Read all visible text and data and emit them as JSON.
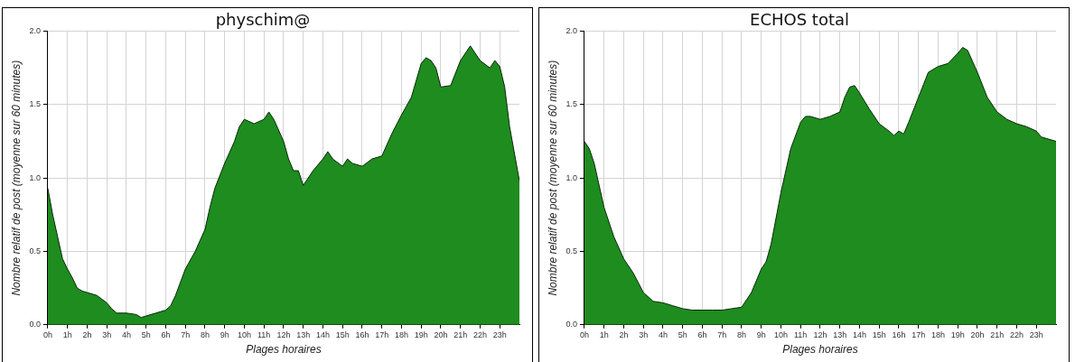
{
  "chart_data": [
    {
      "type": "area",
      "title": "physchim@",
      "xlabel": "Plages horaires",
      "ylabel": "Nombre relatif de post (moyenne sur 60 minutes)",
      "x": [
        0,
        0.25,
        0.5,
        0.75,
        1,
        1.25,
        1.5,
        1.75,
        2,
        2.5,
        3,
        3.25,
        3.5,
        4,
        4.5,
        4.75,
        5,
        5.5,
        6,
        6.25,
        6.5,
        7,
        7.5,
        8,
        8.25,
        8.5,
        9,
        9.5,
        9.75,
        10,
        10.5,
        11,
        11.25,
        11.5,
        12,
        12.25,
        12.5,
        12.75,
        13,
        13.25,
        13.5,
        14,
        14.25,
        14.5,
        15,
        15.25,
        15.5,
        16,
        16.5,
        17,
        17.5,
        18,
        18.5,
        19,
        19.25,
        19.5,
        19.75,
        20,
        20.5,
        21,
        21.5,
        22,
        22.5,
        22.75,
        23,
        23.25,
        23.5,
        24
      ],
      "series": [
        {
          "color": "#1e8c1e",
          "values": [
            0.93,
            0.75,
            0.6,
            0.45,
            0.38,
            0.32,
            0.25,
            0.23,
            0.22,
            0.2,
            0.15,
            0.11,
            0.08,
            0.08,
            0.07,
            0.05,
            0.06,
            0.08,
            0.1,
            0.13,
            0.2,
            0.38,
            0.5,
            0.65,
            0.8,
            0.93,
            1.1,
            1.25,
            1.35,
            1.4,
            1.37,
            1.4,
            1.45,
            1.4,
            1.25,
            1.13,
            1.05,
            1.05,
            0.95,
            1.0,
            1.05,
            1.13,
            1.18,
            1.13,
            1.08,
            1.13,
            1.1,
            1.08,
            1.13,
            1.15,
            1.3,
            1.43,
            1.55,
            1.78,
            1.82,
            1.8,
            1.75,
            1.62,
            1.63,
            1.8,
            1.9,
            1.8,
            1.75,
            1.8,
            1.76,
            1.62,
            1.35,
            0.98
          ]
        }
      ],
      "xlim": [
        0,
        24
      ],
      "xticks": [
        {
          "value": 0,
          "label": "0h"
        },
        {
          "value": 1,
          "label": "1h"
        },
        {
          "value": 2,
          "label": "2h"
        },
        {
          "value": 3,
          "label": "3h"
        },
        {
          "value": 4,
          "label": "4h"
        },
        {
          "value": 5,
          "label": "5h"
        },
        {
          "value": 6,
          "label": "6h"
        },
        {
          "value": 7,
          "label": "7h"
        },
        {
          "value": 8,
          "label": "8h"
        },
        {
          "value": 9,
          "label": "9h"
        },
        {
          "value": 10,
          "label": "10h"
        },
        {
          "value": 11,
          "label": "11h"
        },
        {
          "value": 12,
          "label": "12h"
        },
        {
          "value": 13,
          "label": "13h"
        },
        {
          "value": 14,
          "label": "14h"
        },
        {
          "value": 15,
          "label": "15h"
        },
        {
          "value": 16,
          "label": "16h"
        },
        {
          "value": 17,
          "label": "17h"
        },
        {
          "value": 18,
          "label": "18h"
        },
        {
          "value": 19,
          "label": "19h"
        },
        {
          "value": 20,
          "label": "20h"
        },
        {
          "value": 21,
          "label": "21h"
        },
        {
          "value": 22,
          "label": "22h"
        },
        {
          "value": 23,
          "label": "23h"
        }
      ],
      "ylim": [
        0,
        2
      ],
      "yticks": [
        {
          "value": 0,
          "label": "0.0"
        },
        {
          "value": 0.5,
          "label": "0.5"
        },
        {
          "value": 1,
          "label": "1.0"
        },
        {
          "value": 1.5,
          "label": "1.5"
        },
        {
          "value": 2,
          "label": "2.0"
        }
      ],
      "grid": true
    },
    {
      "type": "area",
      "title": "ECHOS total",
      "xlabel": "Plages horaires",
      "ylabel": "Nombre relatif de post (moyenne sur 60 minutes)",
      "x": [
        0,
        0.25,
        0.5,
        0.75,
        1,
        1.5,
        2,
        2.5,
        3,
        3.5,
        4,
        4.5,
        5,
        5.5,
        6,
        6.5,
        7,
        7.5,
        8,
        8.5,
        9,
        9.25,
        9.5,
        10,
        10.5,
        11,
        11.25,
        11.5,
        12,
        12.5,
        13,
        13.25,
        13.5,
        13.75,
        14,
        14.5,
        15,
        15.5,
        15.75,
        16,
        16.25,
        16.5,
        17,
        17.5,
        18,
        18.5,
        19,
        19.25,
        19.5,
        20,
        20.5,
        21,
        21.5,
        22,
        22.5,
        23,
        23.25,
        23.5,
        24
      ],
      "series": [
        {
          "color": "#1e8c1e",
          "values": [
            1.25,
            1.2,
            1.1,
            0.95,
            0.8,
            0.6,
            0.45,
            0.35,
            0.22,
            0.16,
            0.15,
            0.13,
            0.11,
            0.1,
            0.1,
            0.1,
            0.1,
            0.11,
            0.12,
            0.22,
            0.38,
            0.43,
            0.55,
            0.9,
            1.2,
            1.38,
            1.42,
            1.42,
            1.4,
            1.42,
            1.45,
            1.55,
            1.62,
            1.63,
            1.58,
            1.47,
            1.37,
            1.32,
            1.29,
            1.32,
            1.3,
            1.38,
            1.55,
            1.72,
            1.76,
            1.78,
            1.85,
            1.89,
            1.87,
            1.72,
            1.55,
            1.45,
            1.4,
            1.37,
            1.35,
            1.32,
            1.28,
            1.27,
            1.25
          ]
        }
      ],
      "xlim": [
        0,
        24
      ],
      "xticks": [
        {
          "value": 0,
          "label": "0h"
        },
        {
          "value": 1,
          "label": "1h"
        },
        {
          "value": 2,
          "label": "2h"
        },
        {
          "value": 3,
          "label": "3h"
        },
        {
          "value": 4,
          "label": "4h"
        },
        {
          "value": 5,
          "label": "5h"
        },
        {
          "value": 6,
          "label": "6h"
        },
        {
          "value": 7,
          "label": "7h"
        },
        {
          "value": 8,
          "label": "8h"
        },
        {
          "value": 9,
          "label": "9h"
        },
        {
          "value": 10,
          "label": "10h"
        },
        {
          "value": 11,
          "label": "11h"
        },
        {
          "value": 12,
          "label": "12h"
        },
        {
          "value": 13,
          "label": "13h"
        },
        {
          "value": 14,
          "label": "14h"
        },
        {
          "value": 15,
          "label": "15h"
        },
        {
          "value": 16,
          "label": "16h"
        },
        {
          "value": 17,
          "label": "17h"
        },
        {
          "value": 18,
          "label": "18h"
        },
        {
          "value": 19,
          "label": "19h"
        },
        {
          "value": 20,
          "label": "20h"
        },
        {
          "value": 21,
          "label": "21h"
        },
        {
          "value": 22,
          "label": "22h"
        },
        {
          "value": 23,
          "label": "23h"
        }
      ],
      "ylim": [
        0,
        2
      ],
      "yticks": [
        {
          "value": 0,
          "label": "0.0"
        },
        {
          "value": 0.5,
          "label": "0.5"
        },
        {
          "value": 1,
          "label": "1.0"
        },
        {
          "value": 1.5,
          "label": "1.5"
        },
        {
          "value": 2,
          "label": "2.0"
        }
      ],
      "grid": true
    }
  ]
}
